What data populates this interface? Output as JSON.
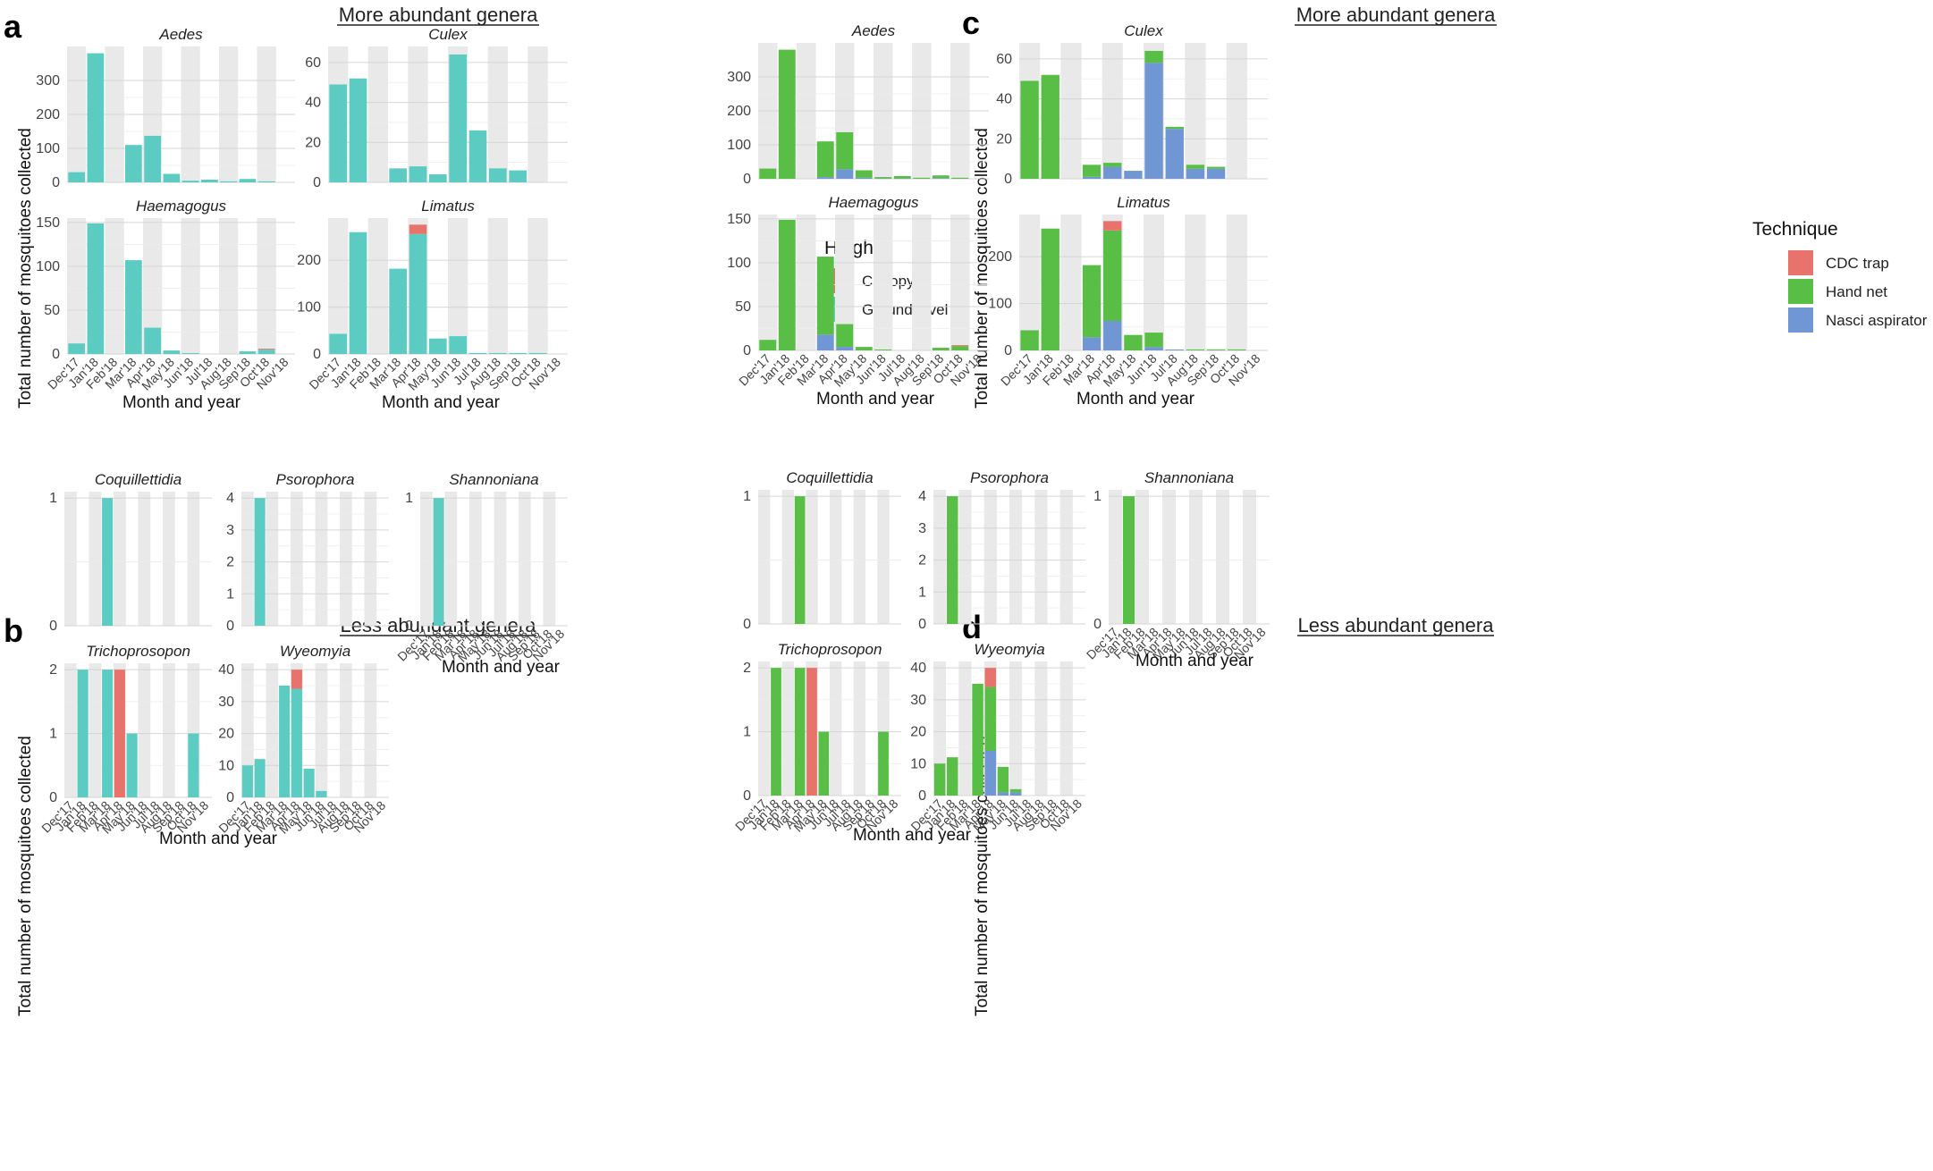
{
  "figure": {
    "panels": [
      "a",
      "b",
      "c",
      "d"
    ],
    "titles": {
      "more_a": "More abundant genera",
      "less_b": "Less abundant genera",
      "more_c": "More abundant genera",
      "less_d": "Less abundant genera"
    },
    "ylabel": "Total number of mosquitoes collected",
    "xlabel": "Month and year",
    "months": [
      "Dec'17",
      "Jan'18",
      "Feb'18",
      "Mar'18",
      "Apr'18",
      "May'18",
      "Jun'18",
      "Jul'18",
      "Aug'18",
      "Sep'18",
      "Oct'18",
      "Nov'18"
    ],
    "legends": {
      "height": {
        "title": "Height",
        "items": [
          {
            "label": "Canopy",
            "color": "#E8736C"
          },
          {
            "label": "Ground level",
            "color": "#5CCCC2"
          }
        ]
      },
      "technique": {
        "title": "Technique",
        "items": [
          {
            "label": "CDC trap",
            "color": "#E8736C"
          },
          {
            "label": "Hand net",
            "color": "#58BE46"
          },
          {
            "label": "Nasci aspirator",
            "color": "#7196D4"
          }
        ]
      }
    }
  },
  "chart_data": [
    {
      "type": "bar",
      "stacked": true,
      "panel": "a",
      "genus": "Aedes",
      "yticks": [
        0,
        100,
        200,
        300
      ],
      "ylim": [
        0,
        400
      ],
      "series": [
        {
          "name": "Ground level",
          "values": [
            30,
            380,
            0,
            110,
            137,
            25,
            5,
            8,
            3,
            10,
            3,
            0
          ]
        },
        {
          "name": "Canopy",
          "values": [
            0,
            0,
            0,
            0,
            0,
            0,
            0,
            0,
            0,
            0,
            0,
            0
          ]
        }
      ]
    },
    {
      "type": "bar",
      "stacked": true,
      "panel": "a",
      "genus": "Culex",
      "yticks": [
        0,
        20,
        40,
        60
      ],
      "ylim": [
        0,
        68
      ],
      "series": [
        {
          "name": "Ground level",
          "values": [
            49,
            52,
            0,
            7,
            8,
            4,
            64,
            26,
            7,
            6,
            0,
            0
          ]
        },
        {
          "name": "Canopy",
          "values": [
            0,
            0,
            0,
            0,
            0,
            0,
            0,
            0,
            0,
            0,
            0,
            0
          ]
        }
      ]
    },
    {
      "type": "bar",
      "stacked": true,
      "panel": "a",
      "genus": "Haemagogus",
      "yticks": [
        0,
        50,
        100,
        150
      ],
      "ylim": [
        0,
        155
      ],
      "series": [
        {
          "name": "Ground level",
          "values": [
            12,
            149,
            0,
            107,
            30,
            4,
            1,
            0,
            0,
            3,
            5,
            0
          ]
        },
        {
          "name": "Canopy",
          "values": [
            0,
            0,
            0,
            0,
            0,
            0,
            0,
            0,
            0,
            0,
            1,
            0
          ]
        }
      ]
    },
    {
      "type": "bar",
      "stacked": true,
      "panel": "a",
      "genus": "Limatus",
      "yticks": [
        0,
        100,
        200
      ],
      "ylim": [
        0,
        290
      ],
      "series": [
        {
          "name": "Ground level",
          "values": [
            43,
            260,
            0,
            182,
            256,
            33,
            38,
            2,
            2,
            2,
            2,
            0
          ]
        },
        {
          "name": "Canopy",
          "values": [
            0,
            0,
            0,
            0,
            20,
            0,
            0,
            0,
            0,
            0,
            0,
            0
          ]
        }
      ]
    },
    {
      "type": "bar",
      "stacked": true,
      "panel": "b",
      "genus": "Coquillettidia",
      "yticks": [
        0,
        1
      ],
      "ylim": [
        0,
        1.05
      ],
      "series": [
        {
          "name": "Ground level",
          "values": [
            0,
            0,
            0,
            1,
            0,
            0,
            0,
            0,
            0,
            0,
            0,
            0
          ]
        },
        {
          "name": "Canopy",
          "values": [
            0,
            0,
            0,
            0,
            0,
            0,
            0,
            0,
            0,
            0,
            0,
            0
          ]
        }
      ]
    },
    {
      "type": "bar",
      "stacked": true,
      "panel": "b",
      "genus": "Psorophora",
      "yticks": [
        0,
        1,
        2,
        3,
        4
      ],
      "ylim": [
        0,
        4.2
      ],
      "series": [
        {
          "name": "Ground level",
          "values": [
            0,
            4,
            0,
            0,
            0,
            0,
            0,
            0,
            0,
            0,
            0,
            0
          ]
        },
        {
          "name": "Canopy",
          "values": [
            0,
            0,
            0,
            0,
            0,
            0,
            0,
            0,
            0,
            0,
            0,
            0
          ]
        }
      ]
    },
    {
      "type": "bar",
      "stacked": true,
      "panel": "b",
      "genus": "Shannoniana",
      "yticks": [
        0,
        1
      ],
      "ylim": [
        0,
        1.05
      ],
      "series": [
        {
          "name": "Ground level",
          "values": [
            0,
            1,
            0,
            0,
            0,
            0,
            0,
            0,
            0,
            0,
            0,
            0
          ]
        },
        {
          "name": "Canopy",
          "values": [
            0,
            0,
            0,
            0,
            0,
            0,
            0,
            0,
            0,
            0,
            0,
            0
          ]
        }
      ]
    },
    {
      "type": "bar",
      "stacked": true,
      "panel": "b",
      "genus": "Trichoprosopon",
      "yticks": [
        0,
        1,
        2
      ],
      "ylim": [
        0,
        2.1
      ],
      "series": [
        {
          "name": "Ground level",
          "values": [
            0,
            2,
            0,
            2,
            0,
            1,
            0,
            0,
            0,
            0,
            1,
            0
          ]
        },
        {
          "name": "Canopy",
          "values": [
            0,
            0,
            0,
            0,
            2,
            0,
            0,
            0,
            0,
            0,
            0,
            0
          ]
        }
      ]
    },
    {
      "type": "bar",
      "stacked": true,
      "panel": "b",
      "genus": "Wyeomyia",
      "yticks": [
        0,
        10,
        20,
        30,
        40
      ],
      "ylim": [
        0,
        42
      ],
      "series": [
        {
          "name": "Ground level",
          "values": [
            10,
            12,
            0,
            35,
            34,
            9,
            2,
            0,
            0,
            0,
            0,
            0
          ]
        },
        {
          "name": "Canopy",
          "values": [
            0,
            0,
            0,
            0,
            6,
            0,
            0,
            0,
            0,
            0,
            0,
            0
          ]
        }
      ]
    },
    {
      "type": "bar",
      "stacked": true,
      "panel": "c",
      "genus": "Aedes",
      "yticks": [
        0,
        100,
        200,
        300
      ],
      "ylim": [
        0,
        400
      ],
      "series": [
        {
          "name": "Nasci aspirator",
          "values": [
            0,
            0,
            0,
            5,
            28,
            3,
            1,
            1,
            0,
            2,
            0,
            0
          ]
        },
        {
          "name": "Hand net",
          "values": [
            30,
            380,
            0,
            105,
            109,
            22,
            4,
            7,
            3,
            8,
            3,
            0
          ]
        },
        {
          "name": "CDC trap",
          "values": [
            0,
            0,
            0,
            0,
            0,
            0,
            0,
            0,
            0,
            0,
            0,
            0
          ]
        }
      ]
    },
    {
      "type": "bar",
      "stacked": true,
      "panel": "c",
      "genus": "Culex",
      "yticks": [
        0,
        20,
        40,
        60
      ],
      "ylim": [
        0,
        68
      ],
      "series": [
        {
          "name": "Nasci aspirator",
          "values": [
            0,
            0,
            0,
            1,
            6,
            4,
            58,
            25,
            5,
            5,
            0,
            0
          ]
        },
        {
          "name": "Hand net",
          "values": [
            49,
            52,
            0,
            6,
            2,
            0,
            6,
            1,
            2,
            1,
            0,
            0
          ]
        },
        {
          "name": "CDC trap",
          "values": [
            0,
            0,
            0,
            0,
            0,
            0,
            0,
            0,
            0,
            0,
            0,
            0
          ]
        }
      ]
    },
    {
      "type": "bar",
      "stacked": true,
      "panel": "c",
      "genus": "Haemagogus",
      "yticks": [
        0,
        50,
        100,
        150
      ],
      "ylim": [
        0,
        155
      ],
      "series": [
        {
          "name": "Nasci aspirator",
          "values": [
            0,
            0,
            0,
            18,
            4,
            0,
            0,
            0,
            0,
            0,
            0,
            0
          ]
        },
        {
          "name": "Hand net",
          "values": [
            12,
            149,
            0,
            89,
            26,
            4,
            1,
            0,
            0,
            3,
            5,
            0
          ]
        },
        {
          "name": "CDC trap",
          "values": [
            0,
            0,
            0,
            0,
            0,
            0,
            0,
            0,
            0,
            0,
            1,
            0
          ]
        }
      ]
    },
    {
      "type": "bar",
      "stacked": true,
      "panel": "c",
      "genus": "Limatus",
      "yticks": [
        0,
        100,
        200
      ],
      "ylim": [
        0,
        290
      ],
      "series": [
        {
          "name": "Nasci aspirator",
          "values": [
            0,
            0,
            0,
            28,
            63,
            0,
            7,
            2,
            0,
            0,
            0,
            0
          ]
        },
        {
          "name": "Hand net",
          "values": [
            43,
            260,
            0,
            154,
            193,
            33,
            31,
            0,
            2,
            2,
            2,
            0
          ]
        },
        {
          "name": "CDC trap",
          "values": [
            0,
            0,
            0,
            0,
            20,
            0,
            0,
            0,
            0,
            0,
            0,
            0
          ]
        }
      ]
    },
    {
      "type": "bar",
      "stacked": true,
      "panel": "d",
      "genus": "Coquillettidia",
      "yticks": [
        0,
        1
      ],
      "ylim": [
        0,
        1.05
      ],
      "series": [
        {
          "name": "Nasci aspirator",
          "values": [
            0,
            0,
            0,
            0,
            0,
            0,
            0,
            0,
            0,
            0,
            0,
            0
          ]
        },
        {
          "name": "Hand net",
          "values": [
            0,
            0,
            0,
            1,
            0,
            0,
            0,
            0,
            0,
            0,
            0,
            0
          ]
        },
        {
          "name": "CDC trap",
          "values": [
            0,
            0,
            0,
            0,
            0,
            0,
            0,
            0,
            0,
            0,
            0,
            0
          ]
        }
      ]
    },
    {
      "type": "bar",
      "stacked": true,
      "panel": "d",
      "genus": "Psorophora",
      "yticks": [
        0,
        1,
        2,
        3,
        4
      ],
      "ylim": [
        0,
        4.2
      ],
      "series": [
        {
          "name": "Nasci aspirator",
          "values": [
            0,
            0,
            0,
            0,
            0,
            0,
            0,
            0,
            0,
            0,
            0,
            0
          ]
        },
        {
          "name": "Hand net",
          "values": [
            0,
            4,
            0,
            0,
            0,
            0,
            0,
            0,
            0,
            0,
            0,
            0
          ]
        },
        {
          "name": "CDC trap",
          "values": [
            0,
            0,
            0,
            0,
            0,
            0,
            0,
            0,
            0,
            0,
            0,
            0
          ]
        }
      ]
    },
    {
      "type": "bar",
      "stacked": true,
      "panel": "d",
      "genus": "Shannoniana",
      "yticks": [
        0,
        1
      ],
      "ylim": [
        0,
        1.05
      ],
      "series": [
        {
          "name": "Nasci aspirator",
          "values": [
            0,
            0,
            0,
            0,
            0,
            0,
            0,
            0,
            0,
            0,
            0,
            0
          ]
        },
        {
          "name": "Hand net",
          "values": [
            0,
            1,
            0,
            0,
            0,
            0,
            0,
            0,
            0,
            0,
            0,
            0
          ]
        },
        {
          "name": "CDC trap",
          "values": [
            0,
            0,
            0,
            0,
            0,
            0,
            0,
            0,
            0,
            0,
            0,
            0
          ]
        }
      ]
    },
    {
      "type": "bar",
      "stacked": true,
      "panel": "d",
      "genus": "Trichoprosopon",
      "yticks": [
        0,
        1,
        2
      ],
      "ylim": [
        0,
        2.1
      ],
      "series": [
        {
          "name": "Nasci aspirator",
          "values": [
            0,
            0,
            0,
            0,
            0,
            0,
            0,
            0,
            0,
            0,
            0,
            0
          ]
        },
        {
          "name": "Hand net",
          "values": [
            0,
            2,
            0,
            2,
            0,
            1,
            0,
            0,
            0,
            0,
            1,
            0
          ]
        },
        {
          "name": "CDC trap",
          "values": [
            0,
            0,
            0,
            0,
            2,
            0,
            0,
            0,
            0,
            0,
            0,
            0
          ]
        }
      ]
    },
    {
      "type": "bar",
      "stacked": true,
      "panel": "d",
      "genus": "Wyeomyia",
      "yticks": [
        0,
        10,
        20,
        30,
        40
      ],
      "ylim": [
        0,
        42
      ],
      "series": [
        {
          "name": "Nasci aspirator",
          "values": [
            0,
            0,
            0,
            0,
            14,
            1,
            1,
            0,
            0,
            0,
            0,
            0
          ]
        },
        {
          "name": "Hand net",
          "values": [
            10,
            12,
            0,
            35,
            20,
            8,
            1,
            0,
            0,
            0,
            0,
            0
          ]
        },
        {
          "name": "CDC trap",
          "values": [
            0,
            0,
            0,
            0,
            6,
            0,
            0,
            0,
            0,
            0,
            0,
            0
          ]
        }
      ]
    }
  ]
}
